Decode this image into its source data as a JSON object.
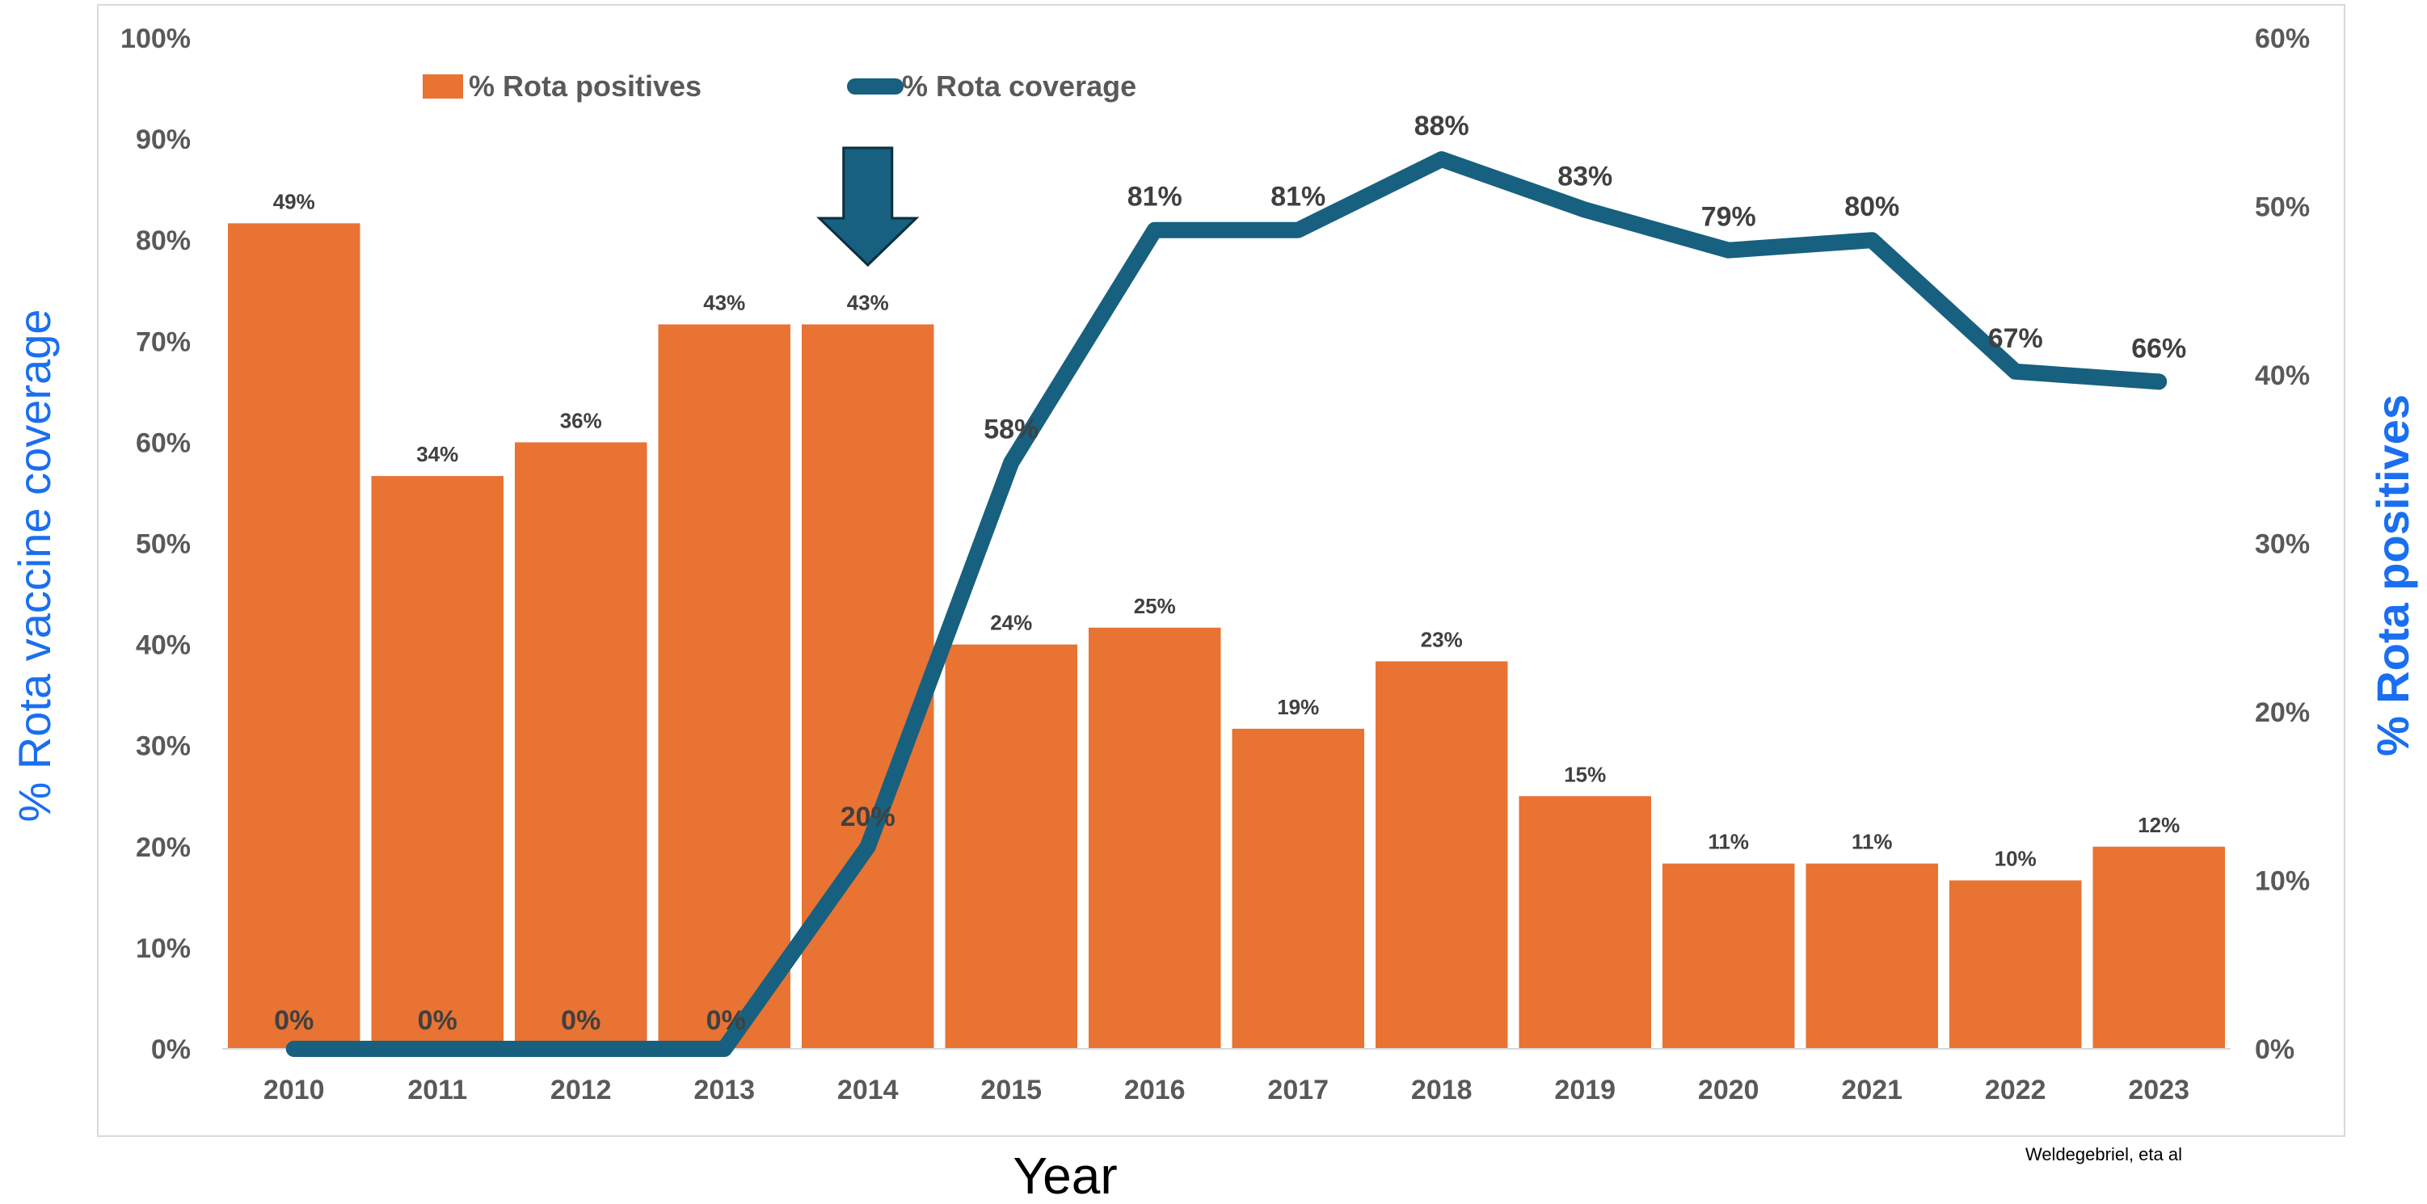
{
  "chart_data": {
    "type": "bar",
    "categories": [
      "2010",
      "2011",
      "2012",
      "2013",
      "2014",
      "2015",
      "2016",
      "2017",
      "2018",
      "2019",
      "2020",
      "2021",
      "2022",
      "2023"
    ],
    "series": [
      {
        "name": "% Rota positives",
        "type": "bar",
        "axis": "right",
        "color": "#e87333",
        "values": [
          49,
          34,
          36,
          43,
          43,
          24,
          25,
          19,
          23,
          15,
          11,
          11,
          10,
          12
        ],
        "labels": [
          "49%",
          "34%",
          "36%",
          "43%",
          "43%",
          "24%",
          "25%",
          "19%",
          "23%",
          "15%",
          "11%",
          "11%",
          "10%",
          "12%"
        ]
      },
      {
        "name": "% Rota coverage",
        "type": "line",
        "axis": "left",
        "color": "#17607f",
        "values": [
          0,
          0,
          0,
          0,
          20,
          58,
          81,
          81,
          88,
          83,
          79,
          80,
          67,
          66
        ],
        "labels": [
          "0%",
          "0%",
          "0%",
          "0%",
          "20%",
          "58%",
          "81%",
          "81%",
          "88%",
          "83%",
          "79%",
          "80%",
          "67%",
          "66%"
        ]
      }
    ],
    "left_axis": {
      "title": "% Rota vaccine coverage",
      "ylim": [
        0,
        100
      ],
      "ticks": [
        "0%",
        "10%",
        "20%",
        "30%",
        "40%",
        "50%",
        "60%",
        "70%",
        "80%",
        "90%",
        "100%"
      ]
    },
    "right_axis": {
      "title": "% Rota positives",
      "ylim": [
        0,
        60
      ],
      "ticks": [
        "0%",
        "10%",
        "20%",
        "30%",
        "40%",
        "50%",
        "60%"
      ]
    },
    "xlabel": "Year",
    "legend_position": "top-left",
    "grid": false,
    "annotation": {
      "type": "arrow-down",
      "category": "2014",
      "color": "#17607f"
    },
    "credit": "Weldegebriel, eta al"
  }
}
